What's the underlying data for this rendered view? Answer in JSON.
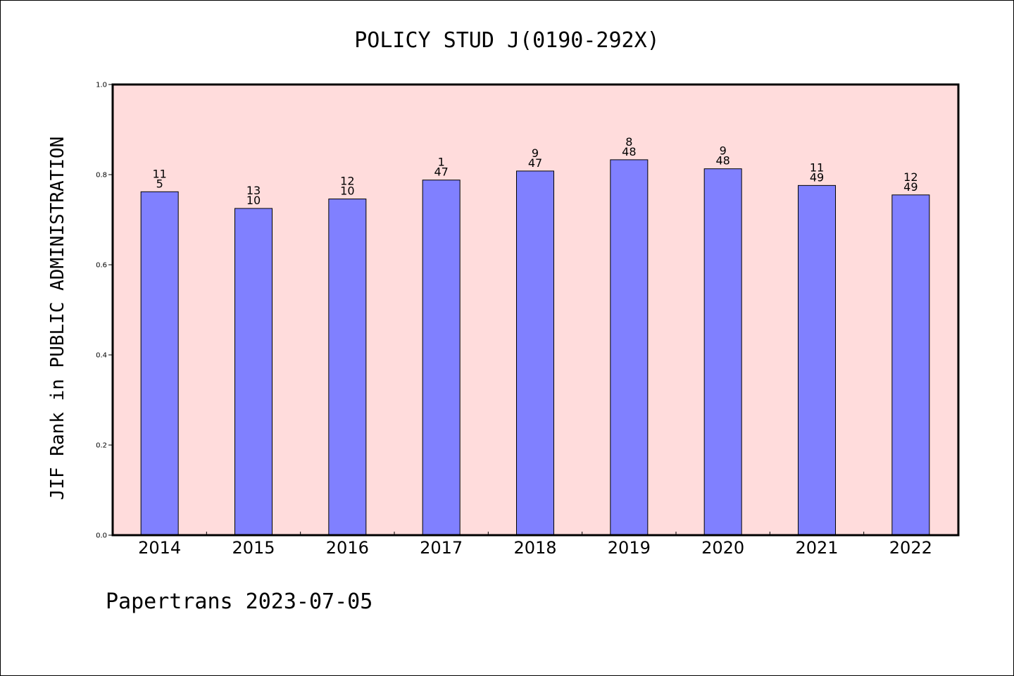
{
  "chart_data": {
    "type": "bar",
    "title": "POLICY STUD J(0190-292X)",
    "xlabel": "",
    "ylabel": "JIF Rank in PUBLIC ADMINISTRATION",
    "ylim": [
      0,
      1.0
    ],
    "yticks": [
      "0.0",
      "0.2",
      "0.4",
      "0.6",
      "0.8",
      "1.0"
    ],
    "grid": false,
    "categories": [
      "2014",
      "2015",
      "2016",
      "2017",
      "2018",
      "2019",
      "2020",
      "2021",
      "2022"
    ],
    "values": [
      0.762,
      0.725,
      0.746,
      0.788,
      0.808,
      0.833,
      0.813,
      0.776,
      0.755
    ],
    "label_top": [
      "11",
      "13",
      "12",
      "1",
      "9",
      "8",
      "9",
      "11",
      "12"
    ],
    "label_bottom": [
      "5",
      "10",
      "10",
      "47",
      "47",
      "48",
      "48",
      "49",
      "49"
    ],
    "colors": {
      "bar": "#8080ff",
      "plot_background": "#ffdcdc",
      "axis": "#000000"
    }
  },
  "footer": "Papertrans 2023-07-05"
}
